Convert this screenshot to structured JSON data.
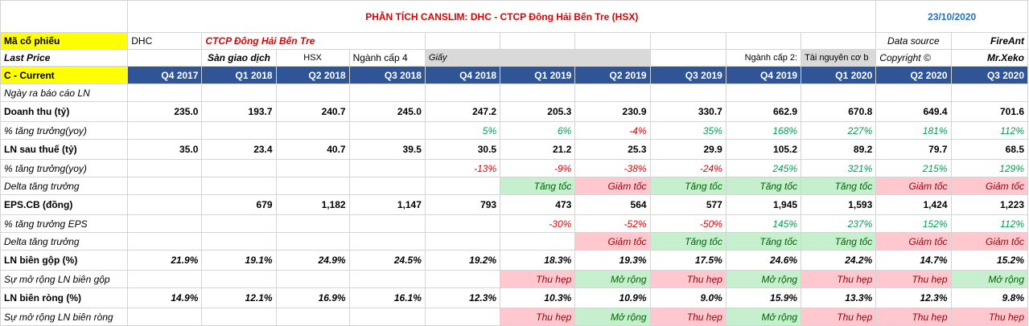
{
  "header": {
    "title": "PHÂN TÍCH CANSLIM: DHC - CTCP Đông Hải Bến Tre (HSX)",
    "date": "23/10/2020"
  },
  "info": {
    "ticker_label": "Mã cổ phiếu",
    "ticker": "DHC",
    "company": "CTCP Đông Hải Bến Tre",
    "data_source_label": "Data source",
    "data_source": "FireAnt",
    "last_price_label": "Last Price",
    "exchange_label": "Sàn giao dịch",
    "exchange": "HSX",
    "industry4_label": "Ngành cấp 4",
    "industry4": "Giấy",
    "industry2_label": "Ngành cấp 2:",
    "industry2": "Tài nguyên cơ b",
    "copyright_label": "Copyright ©",
    "author": "Mr.Xeko"
  },
  "table": {
    "current_label": "C - Current",
    "quarters": [
      "Q4 2017",
      "Q1 2018",
      "Q2 2018",
      "Q3 2018",
      "Q4 2018",
      "Q1 2019",
      "Q2 2019",
      "Q3 2019",
      "Q4 2019",
      "Q1 2020",
      "Q2 2020",
      "Q3 2020"
    ],
    "rows": [
      {
        "label": "Ngày ra báo cáo LN",
        "style": "i",
        "cells": [
          "",
          "",
          "",
          "",
          "",
          "",
          "",
          "",
          "",
          "",
          "",
          ""
        ]
      },
      {
        "label": "Doanh thu (tỷ)",
        "style": "b",
        "cells": [
          "235.0",
          "193.7",
          "240.7",
          "245.0",
          "247.2",
          "205.3",
          "230.9",
          "330.7",
          "662.9",
          "670.8",
          "649.4",
          "701.6"
        ]
      },
      {
        "label": "% tăng trưởng(yoy)",
        "style": "pct",
        "cells": [
          "",
          "",
          "",
          "",
          "5%",
          "6%",
          "-4%",
          "35%",
          "168%",
          "227%",
          "181%",
          "112%"
        ]
      },
      {
        "label": "LN sau thuế (tỷ)",
        "style": "b",
        "cells": [
          "35.0",
          "23.4",
          "40.7",
          "39.5",
          "30.5",
          "21.2",
          "25.3",
          "29.9",
          "105.2",
          "89.2",
          "79.7",
          "68.5"
        ]
      },
      {
        "label": "% tăng trưởng(yoy)",
        "style": "pct",
        "cells": [
          "",
          "",
          "",
          "",
          "-13%",
          "-9%",
          "-38%",
          "-24%",
          "245%",
          "321%",
          "215%",
          "129%"
        ]
      },
      {
        "label": "Delta tăng trưởng",
        "style": "badge",
        "cells": [
          "",
          "",
          "",
          "",
          "",
          "Tăng tốc",
          "Giảm tốc",
          "Tăng tốc",
          "Tăng tốc",
          "Tăng tốc",
          "Giảm tốc",
          "Giảm tốc"
        ]
      },
      {
        "label": "EPS.CB (đồng)",
        "style": "b",
        "cells": [
          "",
          "679",
          "1,182",
          "1,147",
          "793",
          "473",
          "564",
          "577",
          "1,945",
          "1,593",
          "1,424",
          "1,223"
        ]
      },
      {
        "label": "% tăng trưởng EPS",
        "style": "pct",
        "cells": [
          "",
          "",
          "",
          "",
          "",
          "-30%",
          "-52%",
          "-50%",
          "145%",
          "237%",
          "152%",
          "112%"
        ]
      },
      {
        "label": "Delta tăng trưởng",
        "style": "badge",
        "cells": [
          "",
          "",
          "",
          "",
          "",
          "",
          "Giảm tốc",
          "Tăng tốc",
          "Tăng tốc",
          "Tăng tốc",
          "Giảm tốc",
          "Giảm tốc"
        ]
      },
      {
        "label": "LN biên gộp (%)",
        "style": "bi",
        "cells": [
          "21.9%",
          "19.1%",
          "24.9%",
          "24.5%",
          "19.2%",
          "18.3%",
          "19.3%",
          "17.5%",
          "24.6%",
          "24.2%",
          "14.7%",
          "15.2%"
        ]
      },
      {
        "label": "Sự mở rộng LN biên gộp",
        "style": "badge",
        "cells": [
          "",
          "",
          "",
          "",
          "",
          "Thu hẹp",
          "Mở rộng",
          "Thu hẹp",
          "Mở rộng",
          "Thu hẹp",
          "Thu hẹp",
          "Mở rộng"
        ]
      },
      {
        "label": "LN biên ròng (%)",
        "style": "bi",
        "cells": [
          "14.9%",
          "12.1%",
          "16.9%",
          "16.1%",
          "12.3%",
          "10.3%",
          "10.9%",
          "9.0%",
          "15.9%",
          "13.3%",
          "12.3%",
          "9.8%"
        ]
      },
      {
        "label": "Sự mở rộng LN biên ròng",
        "style": "badge",
        "cells": [
          "",
          "",
          "",
          "",
          "",
          "Thu hẹp",
          "Mở rộng",
          "Thu hẹp",
          "Mở rộng",
          "Thu hẹp",
          "Thu hẹp",
          "Thu hẹp"
        ]
      }
    ]
  },
  "colors": {
    "header_bg": "#2f5597",
    "highlight_yellow": "#ffff00",
    "title_red": "#e00000",
    "date_blue": "#1f6fd0",
    "positive_green": "#00a050",
    "badge_up_bg": "#c6efce",
    "badge_down_bg": "#ffc7ce"
  }
}
